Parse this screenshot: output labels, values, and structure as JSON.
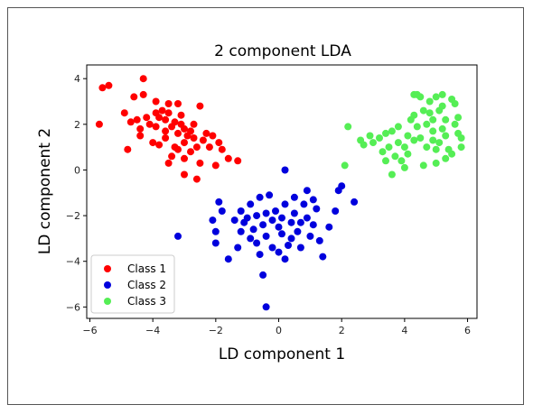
{
  "chart_data": {
    "type": "scatter",
    "title": "2 component LDA",
    "xlabel": "LD component 1",
    "ylabel": "LD component 2",
    "xlim": [
      -6.1,
      6.3
    ],
    "ylim": [
      -6.5,
      4.6
    ],
    "xticks": [
      -6,
      -4,
      -2,
      0,
      2,
      4,
      6
    ],
    "yticks": [
      -6,
      -4,
      -2,
      0,
      2,
      4
    ],
    "xtick_labels": [
      "−6",
      "−4",
      "−2",
      "0",
      "2",
      "4",
      "6"
    ],
    "ytick_labels": [
      "−6",
      "−4",
      "−2",
      "0",
      "2",
      "4"
    ],
    "grid": false,
    "legend_position": "lower-left",
    "series": [
      {
        "name": "Class 1",
        "color": "#ff0000",
        "points": [
          [
            -5.6,
            3.6
          ],
          [
            -5.4,
            3.7
          ],
          [
            -4.3,
            4.0
          ],
          [
            -4.6,
            3.2
          ],
          [
            -4.3,
            3.3
          ],
          [
            -3.9,
            3.0
          ],
          [
            -3.5,
            2.9
          ],
          [
            -2.5,
            2.8
          ],
          [
            -3.2,
            2.9
          ],
          [
            -5.7,
            2.0
          ],
          [
            -4.9,
            2.5
          ],
          [
            -4.7,
            2.1
          ],
          [
            -4.5,
            2.2
          ],
          [
            -4.4,
            1.8
          ],
          [
            -4.2,
            2.3
          ],
          [
            -4.1,
            2.0
          ],
          [
            -3.9,
            2.5
          ],
          [
            -3.8,
            2.3
          ],
          [
            -3.7,
            2.6
          ],
          [
            -3.6,
            2.2
          ],
          [
            -3.5,
            2.5
          ],
          [
            -3.4,
            1.9
          ],
          [
            -3.3,
            2.1
          ],
          [
            -3.6,
            1.7
          ],
          [
            -3.2,
            1.6
          ],
          [
            -3.1,
            2.0
          ],
          [
            -3.0,
            1.8
          ],
          [
            -2.9,
            1.5
          ],
          [
            -2.8,
            1.7
          ],
          [
            -2.7,
            1.4
          ],
          [
            -3.0,
            1.2
          ],
          [
            -3.3,
            1.0
          ],
          [
            -3.6,
            1.4
          ],
          [
            -3.8,
            1.1
          ],
          [
            -3.4,
            0.6
          ],
          [
            -3.2,
            0.9
          ],
          [
            -3.0,
            0.5
          ],
          [
            -2.8,
            0.8
          ],
          [
            -2.6,
            1.0
          ],
          [
            -2.4,
            1.3
          ],
          [
            -2.2,
            1.0
          ],
          [
            -2.1,
            1.5
          ],
          [
            -1.9,
            1.2
          ],
          [
            -1.8,
            0.9
          ],
          [
            -1.6,
            0.5
          ],
          [
            -1.3,
            0.4
          ],
          [
            -2.0,
            0.2
          ],
          [
            -2.5,
            0.3
          ],
          [
            -3.0,
            -0.2
          ],
          [
            -2.6,
            -0.4
          ],
          [
            -3.5,
            0.3
          ],
          [
            -4.0,
            1.2
          ],
          [
            -4.4,
            1.5
          ],
          [
            -4.8,
            0.9
          ],
          [
            -3.9,
            1.9
          ],
          [
            -3.1,
            2.4
          ],
          [
            -2.7,
            2.0
          ],
          [
            -2.3,
            1.6
          ]
        ]
      },
      {
        "name": "Class 2",
        "color": "#0000dd",
        "points": [
          [
            0.2,
            0.0
          ],
          [
            -1.9,
            -1.4
          ],
          [
            -1.8,
            -1.8
          ],
          [
            -2.1,
            -2.2
          ],
          [
            -2.0,
            -2.7
          ],
          [
            -2.0,
            -3.2
          ],
          [
            -1.6,
            -3.9
          ],
          [
            -3.2,
            -2.9
          ],
          [
            -1.2,
            -1.8
          ],
          [
            -1.1,
            -2.3
          ],
          [
            -1.0,
            -2.1
          ],
          [
            -0.9,
            -1.5
          ],
          [
            -0.8,
            -2.6
          ],
          [
            -0.7,
            -2.0
          ],
          [
            -0.6,
            -1.2
          ],
          [
            -0.5,
            -2.4
          ],
          [
            -0.4,
            -1.9
          ],
          [
            -0.4,
            -2.9
          ],
          [
            -0.3,
            -1.1
          ],
          [
            -0.2,
            -2.2
          ],
          [
            -0.1,
            -1.8
          ],
          [
            0.0,
            -2.5
          ],
          [
            0.1,
            -2.1
          ],
          [
            0.1,
            -2.8
          ],
          [
            0.2,
            -1.5
          ],
          [
            0.3,
            -3.3
          ],
          [
            0.4,
            -2.3
          ],
          [
            0.5,
            -1.9
          ],
          [
            0.6,
            -2.7
          ],
          [
            0.7,
            -2.3
          ],
          [
            0.7,
            -3.4
          ],
          [
            0.8,
            -1.5
          ],
          [
            0.9,
            -2.1
          ],
          [
            1.0,
            -2.9
          ],
          [
            1.1,
            -2.4
          ],
          [
            1.1,
            -1.3
          ],
          [
            1.2,
            -1.7
          ],
          [
            1.3,
            -3.1
          ],
          [
            1.4,
            -3.8
          ],
          [
            1.6,
            -2.5
          ],
          [
            1.8,
            -1.8
          ],
          [
            1.9,
            -0.9
          ],
          [
            2.0,
            -0.7
          ],
          [
            2.4,
            -1.4
          ],
          [
            0.9,
            -0.9
          ],
          [
            0.5,
            -1.2
          ],
          [
            -0.7,
            -3.2
          ],
          [
            -0.6,
            -3.7
          ],
          [
            -0.9,
            -3.0
          ],
          [
            -1.2,
            -2.7
          ],
          [
            -1.3,
            -3.4
          ],
          [
            -0.5,
            -4.6
          ],
          [
            -0.4,
            -6.0
          ],
          [
            0.0,
            -3.6
          ],
          [
            0.2,
            -3.9
          ],
          [
            0.4,
            -3.0
          ],
          [
            -0.2,
            -3.4
          ],
          [
            -1.4,
            -2.2
          ]
        ]
      },
      {
        "name": "Class 3",
        "color": "#55ee55",
        "points": [
          [
            2.2,
            1.9
          ],
          [
            2.1,
            0.2
          ],
          [
            2.6,
            1.3
          ],
          [
            2.7,
            1.1
          ],
          [
            2.9,
            1.5
          ],
          [
            3.0,
            1.2
          ],
          [
            3.2,
            1.4
          ],
          [
            3.3,
            0.8
          ],
          [
            3.4,
            0.4
          ],
          [
            3.5,
            1.0
          ],
          [
            3.6,
            1.7
          ],
          [
            3.7,
            0.6
          ],
          [
            3.8,
            1.2
          ],
          [
            3.9,
            0.4
          ],
          [
            3.6,
            -0.2
          ],
          [
            3.8,
            1.9
          ],
          [
            4.1,
            0.7
          ],
          [
            4.1,
            1.5
          ],
          [
            4.3,
            2.4
          ],
          [
            4.3,
            3.3
          ],
          [
            4.4,
            3.3
          ],
          [
            4.5,
            3.2
          ],
          [
            4.4,
            1.9
          ],
          [
            4.5,
            1.4
          ],
          [
            4.6,
            0.2
          ],
          [
            4.7,
            2.0
          ],
          [
            4.7,
            1.0
          ],
          [
            4.8,
            2.5
          ],
          [
            4.9,
            1.7
          ],
          [
            4.9,
            2.2
          ],
          [
            5.0,
            3.2
          ],
          [
            5.0,
            0.9
          ],
          [
            5.1,
            2.6
          ],
          [
            5.1,
            1.2
          ],
          [
            5.2,
            2.8
          ],
          [
            5.3,
            2.2
          ],
          [
            5.3,
            1.5
          ],
          [
            5.4,
            0.9
          ],
          [
            5.5,
            0.7
          ],
          [
            5.6,
            2.9
          ],
          [
            5.6,
            2.0
          ],
          [
            5.7,
            2.3
          ],
          [
            5.7,
            1.6
          ],
          [
            5.8,
            1.4
          ],
          [
            5.8,
            1.0
          ],
          [
            5.5,
            3.1
          ],
          [
            5.2,
            3.3
          ],
          [
            4.8,
            3.0
          ],
          [
            4.0,
            0.1
          ],
          [
            4.3,
            1.3
          ],
          [
            4.6,
            2.6
          ],
          [
            5.0,
            0.3
          ],
          [
            5.3,
            0.5
          ],
          [
            3.4,
            1.6
          ],
          [
            4.2,
            2.2
          ],
          [
            4.9,
            1.3
          ],
          [
            5.2,
            1.8
          ],
          [
            4.0,
            1.0
          ]
        ]
      }
    ]
  }
}
